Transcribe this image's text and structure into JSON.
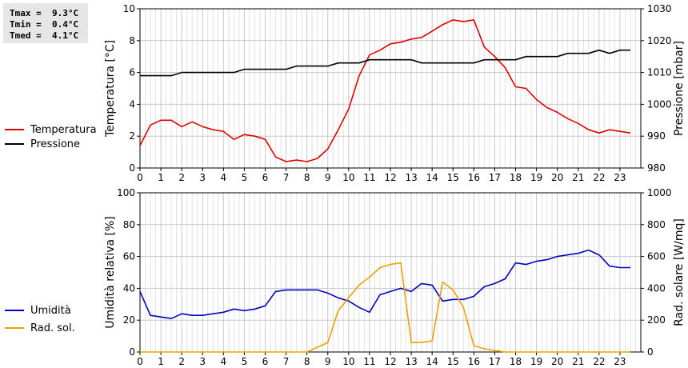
{
  "stats": {
    "tmax": "Tmax =  9.3°C",
    "tmin": "Tmin =  0.4°C",
    "tmed": "Tmed =  4.1°C"
  },
  "colors": {
    "temperature": "#e00000",
    "pressure": "#000000",
    "humidity": "#0000c0",
    "radiation": "#f0a000",
    "grid": "#c8c8c8"
  },
  "chart_data": [
    {
      "type": "line",
      "x_ticks": [
        "0",
        "1",
        "2",
        "3",
        "4",
        "5",
        "6",
        "7",
        "8",
        "9",
        "10",
        "11",
        "12",
        "13",
        "14",
        "15",
        "16",
        "17",
        "18",
        "19",
        "20",
        "21",
        "22",
        "23"
      ],
      "xlim": [
        0,
        24
      ],
      "ylabel_left": "Temperatura [°C]",
      "ylabel_right": "Pressione [mbar]",
      "ylim_left": [
        0,
        10
      ],
      "ylim_right": [
        980,
        1030
      ],
      "y_ticks_left": [
        "0",
        "2",
        "4",
        "6",
        "8",
        "10"
      ],
      "y_ticks_right": [
        "980",
        "990",
        "1000",
        "1010",
        "1020",
        "1030"
      ],
      "legend": [
        "Temperatura",
        "Pressione"
      ],
      "series": [
        {
          "name": "Temperatura",
          "axis": "left",
          "x": [
            0,
            0.5,
            1,
            1.5,
            2,
            2.5,
            3,
            3.5,
            4,
            4.5,
            5,
            5.5,
            6,
            6.5,
            7,
            7.5,
            8,
            8.5,
            9,
            9.5,
            10,
            10.5,
            11,
            11.5,
            12,
            12.5,
            13,
            13.5,
            14,
            14.5,
            15,
            15.5,
            16,
            16.5,
            17,
            17.5,
            18,
            18.5,
            19,
            19.5,
            20,
            20.5,
            21,
            21.5,
            22,
            22.5,
            23,
            23.5
          ],
          "y": [
            1.4,
            2.7,
            3.0,
            3.0,
            2.6,
            2.9,
            2.6,
            2.4,
            2.3,
            1.8,
            2.1,
            2.0,
            1.8,
            0.7,
            0.4,
            0.5,
            0.4,
            0.6,
            1.2,
            2.4,
            3.7,
            5.8,
            7.1,
            7.4,
            7.8,
            7.9,
            8.1,
            8.2,
            8.6,
            9.0,
            9.3,
            9.2,
            9.3,
            7.6,
            7.0,
            6.3,
            5.1,
            5.0,
            4.3,
            3.8,
            3.5,
            3.1,
            2.8,
            2.4,
            2.2,
            2.4,
            2.3,
            2.2
          ]
        },
        {
          "name": "Pressione",
          "axis": "right",
          "x": [
            0,
            0.5,
            1,
            1.5,
            2,
            2.5,
            3,
            3.5,
            4,
            4.5,
            5,
            5.5,
            6,
            6.5,
            7,
            7.5,
            8,
            8.5,
            9,
            9.5,
            10,
            10.5,
            11,
            11.5,
            12,
            12.5,
            13,
            13.5,
            14,
            14.5,
            15,
            15.5,
            16,
            16.5,
            17,
            17.5,
            18,
            18.5,
            19,
            19.5,
            20,
            20.5,
            21,
            21.5,
            22,
            22.5,
            23,
            23.5
          ],
          "y": [
            1009,
            1009,
            1009,
            1009,
            1010,
            1010,
            1010,
            1010,
            1010,
            1010,
            1011,
            1011,
            1011,
            1011,
            1011,
            1012,
            1012,
            1012,
            1012,
            1013,
            1013,
            1013,
            1014,
            1014,
            1014,
            1014,
            1014,
            1013,
            1013,
            1013,
            1013,
            1013,
            1013,
            1014,
            1014,
            1014,
            1014,
            1015,
            1015,
            1015,
            1015,
            1016,
            1016,
            1016,
            1017,
            1016,
            1017,
            1017
          ]
        }
      ]
    },
    {
      "type": "line",
      "x_ticks": [
        "0",
        "1",
        "2",
        "3",
        "4",
        "5",
        "6",
        "7",
        "8",
        "9",
        "10",
        "11",
        "12",
        "13",
        "14",
        "15",
        "16",
        "17",
        "18",
        "19",
        "20",
        "21",
        "22",
        "23"
      ],
      "xlim": [
        0,
        24
      ],
      "ylabel_left": "Umidità relativa [%]",
      "ylabel_right": "Rad. solare [W/mq]",
      "ylim_left": [
        0,
        100
      ],
      "ylim_right": [
        0,
        1000
      ],
      "y_ticks_left": [
        "0",
        "20",
        "40",
        "60",
        "80",
        "100"
      ],
      "y_ticks_right": [
        "0",
        "200",
        "400",
        "600",
        "800",
        "1000"
      ],
      "legend": [
        "Umidità",
        "Rad. sol."
      ],
      "series": [
        {
          "name": "Umidità",
          "axis": "left",
          "x": [
            0,
            0.5,
            1,
            1.5,
            2,
            2.5,
            3,
            3.5,
            4,
            4.5,
            5,
            5.5,
            6,
            6.5,
            7,
            7.5,
            8,
            8.5,
            9,
            9.5,
            10,
            10.5,
            11,
            11.5,
            12,
            12.5,
            13,
            13.5,
            14,
            14.5,
            15,
            15.5,
            16,
            16.5,
            17,
            17.5,
            18,
            18.5,
            19,
            19.5,
            20,
            20.5,
            21,
            21.5,
            22,
            22.5,
            23,
            23.5
          ],
          "y": [
            38,
            23,
            22,
            21,
            24,
            23,
            23,
            24,
            25,
            27,
            26,
            27,
            29,
            38,
            39,
            39,
            39,
            39,
            37,
            34,
            32,
            28,
            25,
            36,
            38,
            40,
            38,
            43,
            42,
            32,
            33,
            33,
            35,
            41,
            43,
            46,
            56,
            55,
            57,
            58,
            60,
            61,
            62,
            64,
            61,
            54,
            53,
            53
          ]
        },
        {
          "name": "Rad. sol.",
          "axis": "right",
          "x": [
            0,
            0.5,
            1,
            1.5,
            2,
            2.5,
            3,
            3.5,
            4,
            4.5,
            5,
            5.5,
            6,
            6.5,
            7,
            7.5,
            8,
            8.5,
            9,
            9.5,
            10,
            10.5,
            11,
            11.5,
            12,
            12.5,
            13,
            13.5,
            14,
            14.5,
            15,
            15.5,
            16,
            16.5,
            17,
            17.5,
            18,
            18.5,
            19,
            19.5,
            20,
            20.5,
            21,
            21.5,
            22,
            22.5,
            23,
            23.5
          ],
          "y": [
            0,
            0,
            0,
            0,
            0,
            0,
            0,
            0,
            0,
            0,
            0,
            0,
            0,
            0,
            0,
            0,
            0,
            30,
            60,
            260,
            340,
            420,
            470,
            530,
            550,
            560,
            60,
            60,
            70,
            440,
            390,
            280,
            40,
            20,
            10,
            0,
            0,
            0,
            0,
            0,
            0,
            0,
            0,
            0,
            0,
            0,
            0,
            0
          ]
        }
      ]
    }
  ]
}
